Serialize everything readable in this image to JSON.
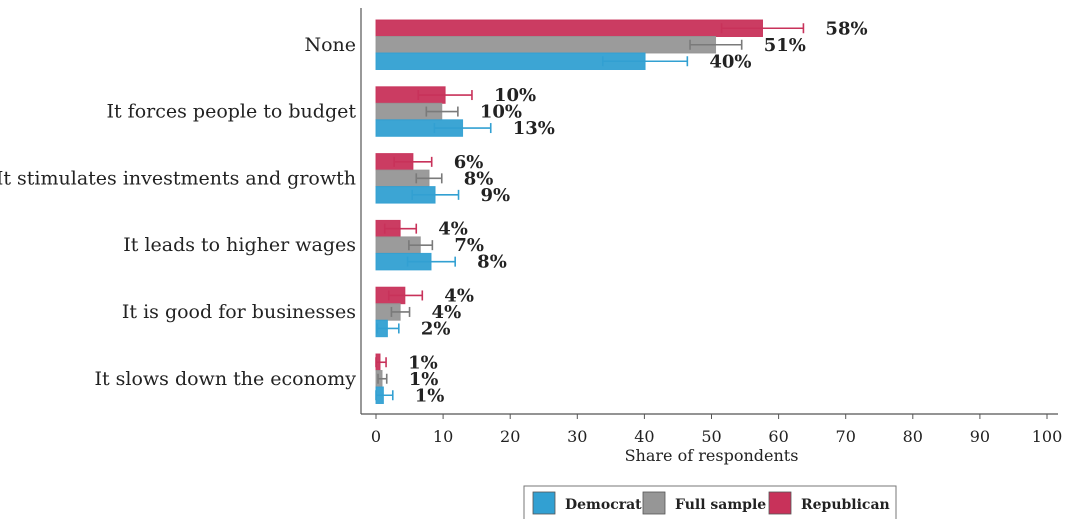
{
  "chart_data": {
    "type": "bar",
    "orientation": "horizontal",
    "categories": [
      "None",
      "It forces people to budget",
      "It stimulates investments and growth",
      "It leads to higher wages",
      "It is good for businesses",
      "It slows down the economy"
    ],
    "series": [
      {
        "name": "Republican",
        "color": "#c8325a",
        "values": [
          57.6,
          10.3,
          5.5,
          3.6,
          4.3,
          0.6
        ],
        "ci_low": [
          51.5,
          6.3,
          2.7,
          1.3,
          1.9,
          0.0
        ],
        "ci_high": [
          63.7,
          14.3,
          8.3,
          6.0,
          6.9,
          1.5
        ],
        "labels": [
          "58%",
          "10%",
          "6%",
          "4%",
          "4%",
          "1%"
        ]
      },
      {
        "name": "Full sample",
        "color": "#969696",
        "values": [
          50.6,
          9.8,
          7.9,
          6.6,
          3.6,
          0.9
        ],
        "ci_low": [
          46.8,
          7.5,
          6.0,
          4.9,
          2.3,
          0.3
        ],
        "ci_high": [
          54.5,
          12.2,
          9.8,
          8.4,
          5.0,
          1.6
        ],
        "labels": [
          "51%",
          "10%",
          "8%",
          "7%",
          "4%",
          "1%"
        ]
      },
      {
        "name": "Democrat",
        "color": "#32a0d2",
        "values": [
          40.1,
          12.9,
          8.8,
          8.2,
          1.7,
          1.1
        ],
        "ci_low": [
          33.8,
          8.7,
          5.4,
          4.7,
          0.2,
          0.0
        ],
        "ci_high": [
          46.4,
          17.1,
          12.3,
          11.8,
          3.4,
          2.5
        ],
        "labels": [
          "40%",
          "13%",
          "9%",
          "8%",
          "2%",
          "1%"
        ]
      }
    ],
    "xlabel": "Share of respondents",
    "ylabel": "",
    "xlim": [
      0,
      100
    ],
    "xticks": [
      0,
      10,
      20,
      30,
      40,
      50,
      60,
      70,
      80,
      90,
      100
    ],
    "grid": false,
    "legend": {
      "position": "bottom",
      "entries": [
        "Democrat",
        "Full sample",
        "Republican"
      ]
    }
  }
}
